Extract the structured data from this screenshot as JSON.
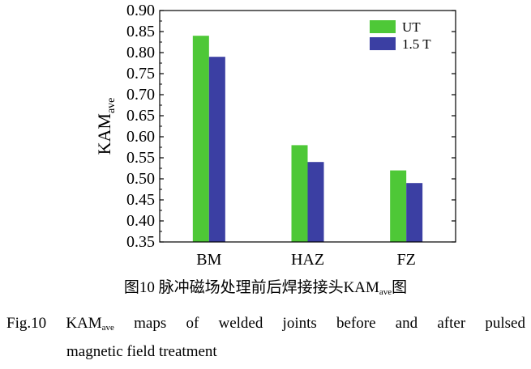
{
  "chart_data": {
    "type": "bar",
    "categories": [
      "BM",
      "HAZ",
      "FZ"
    ],
    "series": [
      {
        "name": "UT",
        "values": [
          0.84,
          0.58,
          0.52
        ],
        "color": "#4ec837"
      },
      {
        "name": "1.5 T",
        "values": [
          0.79,
          0.54,
          0.49
        ],
        "color": "#3b3fa3"
      }
    ],
    "ylabel_main": "KAM",
    "ylabel_sub": "ave",
    "ylim": [
      0.35,
      0.9
    ],
    "yticks": [
      "0.35",
      "0.40",
      "0.45",
      "0.50",
      "0.55",
      "0.60",
      "0.65",
      "0.70",
      "0.75",
      "0.80",
      "0.85",
      "0.90"
    ],
    "legend_position": "top-right"
  },
  "caption": {
    "cn_prefix": "图10  脉冲磁场处理前后焊接接头KAM",
    "cn_sub": "ave",
    "cn_suffix": "图",
    "en_words": [
      "Fig.10",
      "KAM",
      "maps",
      "of",
      "welded",
      "joints",
      "before",
      "and",
      "after",
      "pulsed"
    ],
    "en_kam_sub": "ave",
    "en_line2": "magnetic field treatment"
  }
}
